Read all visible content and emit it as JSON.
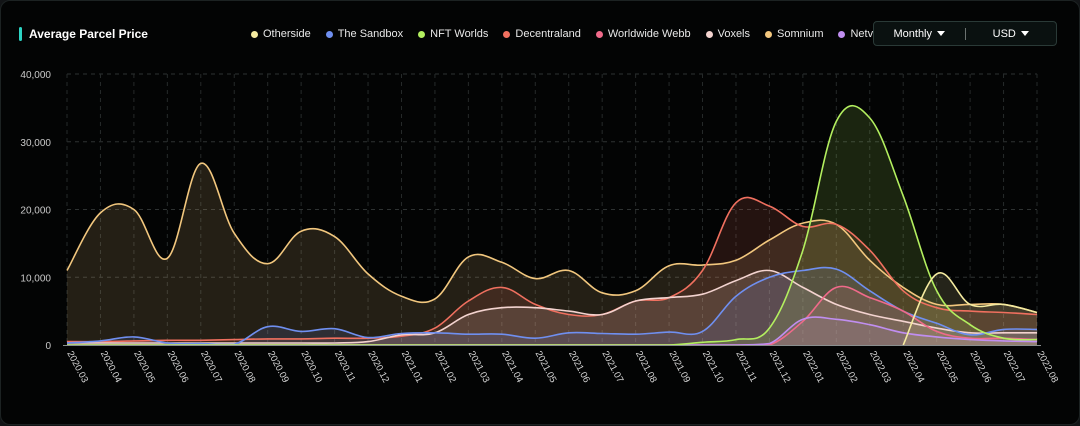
{
  "header": {
    "title": "Average Parcel Price"
  },
  "controls": {
    "period": "Monthly",
    "currency": "USD"
  },
  "colors": {
    "accent": "#2dd4c4",
    "background": "#030404",
    "grid": "#2a2d2d"
  },
  "legend": [
    {
      "name": "Otherside",
      "color": "#f5eba0"
    },
    {
      "name": "The Sandbox",
      "color": "#6f8ff0"
    },
    {
      "name": "NFT Worlds",
      "color": "#b3ef5f"
    },
    {
      "name": "Decentraland",
      "color": "#f0705f"
    },
    {
      "name": "Worldwide Webb",
      "color": "#f06a8a"
    },
    {
      "name": "Voxels",
      "color": "#f3d3cf"
    },
    {
      "name": "Somnium",
      "color": "#f2c77e"
    },
    {
      "name": "Netvrk",
      "color": "#c08ef0"
    }
  ],
  "chart_data": {
    "type": "area",
    "title": "Average Parcel Price",
    "xlabel": "",
    "ylabel": "",
    "ylim": [
      0,
      40000
    ],
    "yticks": [
      0,
      10000,
      20000,
      30000,
      40000
    ],
    "ytick_labels": [
      "0",
      "10,000",
      "20,000",
      "30,000",
      "40,000"
    ],
    "grid": true,
    "legend_position": "top",
    "categories": [
      "2020.03",
      "2020.04",
      "2020.05",
      "2020.06",
      "2020.07",
      "2020.08",
      "2020.09",
      "2020.10",
      "2020.11",
      "2020.12",
      "2021.01",
      "2021.02",
      "2021.03",
      "2021.04",
      "2021.05",
      "2021.06",
      "2021.07",
      "2021.08",
      "2021.09",
      "2021.10",
      "2021.11",
      "2021.12",
      "2022.01",
      "2022.02",
      "2022.03",
      "2022.04",
      "2022.05",
      "2022.06",
      "2022.07",
      "2022.08"
    ],
    "series": [
      {
        "name": "Somnium",
        "color": "#f2c77e",
        "values": [
          11000,
          19500,
          20000,
          12800,
          26800,
          16500,
          12000,
          16800,
          16000,
          10500,
          7200,
          6800,
          13000,
          12200,
          9800,
          11000,
          7700,
          8000,
          11700,
          11800,
          12500,
          15500,
          18000,
          17800,
          12500,
          8500,
          6000,
          6000,
          6000,
          4800
        ]
      },
      {
        "name": "Decentraland",
        "color": "#f0705f",
        "values": [
          500,
          500,
          600,
          700,
          700,
          800,
          900,
          900,
          1000,
          1000,
          1300,
          2500,
          6500,
          8500,
          6000,
          4500,
          4500,
          6500,
          7000,
          11000,
          21000,
          20500,
          17500,
          17800,
          14000,
          8000,
          5500,
          5000,
          4800,
          4500
        ]
      },
      {
        "name": "Voxels",
        "color": "#f3d3cf",
        "values": [
          300,
          300,
          300,
          300,
          300,
          300,
          300,
          300,
          300,
          500,
          1500,
          1800,
          4500,
          5500,
          5500,
          5000,
          4500,
          6500,
          7000,
          7500,
          9500,
          11000,
          8500,
          6000,
          4500,
          3500,
          2500,
          1800,
          1800,
          1800
        ]
      },
      {
        "name": "The Sandbox",
        "color": "#6f8ff0",
        "values": [
          300,
          600,
          1200,
          300,
          200,
          100,
          2700,
          2000,
          2400,
          1100,
          1700,
          1800,
          1600,
          1600,
          1000,
          1800,
          1700,
          1600,
          1900,
          2000,
          7200,
          10000,
          11000,
          11200,
          8000,
          5000,
          3200,
          1500,
          2300,
          2300
        ]
      },
      {
        "name": "Worldwide Webb",
        "color": "#f06a8a",
        "values": [
          0,
          0,
          0,
          0,
          0,
          0,
          0,
          0,
          0,
          0,
          0,
          0,
          0,
          0,
          0,
          0,
          0,
          0,
          0,
          0,
          0,
          0,
          3500,
          8500,
          7000,
          5000,
          2000,
          1000,
          1000,
          800
        ]
      },
      {
        "name": "Netvrk",
        "color": "#c08ef0",
        "values": [
          0,
          0,
          0,
          0,
          0,
          0,
          0,
          0,
          0,
          0,
          0,
          0,
          0,
          0,
          0,
          0,
          0,
          0,
          0,
          0,
          0,
          200,
          3800,
          3800,
          3000,
          1800,
          1200,
          800,
          600,
          500
        ]
      },
      {
        "name": "NFT Worlds",
        "color": "#b3ef5f",
        "values": [
          0,
          0,
          0,
          0,
          0,
          0,
          0,
          0,
          0,
          0,
          0,
          0,
          0,
          0,
          0,
          0,
          0,
          0,
          0,
          400,
          800,
          2500,
          14000,
          33000,
          33500,
          22000,
          8000,
          3000,
          1000,
          800
        ]
      },
      {
        "name": "Otherside",
        "color": "#f5eba0",
        "values": [
          null,
          null,
          null,
          null,
          null,
          null,
          null,
          null,
          null,
          null,
          null,
          null,
          null,
          null,
          null,
          null,
          null,
          null,
          null,
          null,
          null,
          null,
          null,
          null,
          null,
          0,
          10500,
          6000,
          6000,
          4800
        ]
      }
    ]
  }
}
